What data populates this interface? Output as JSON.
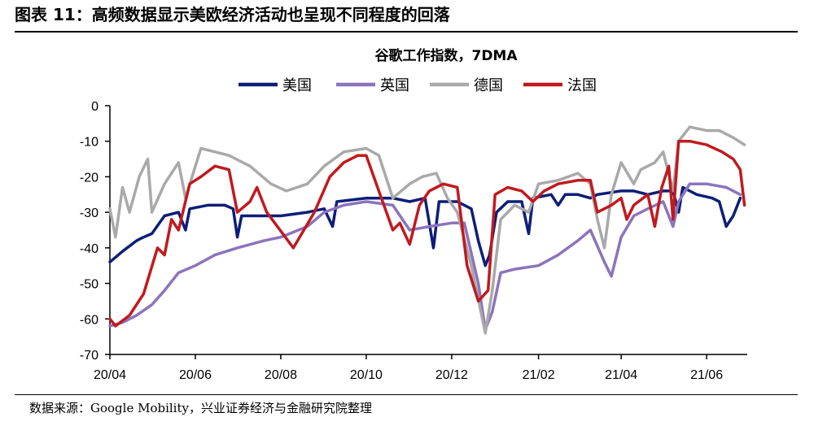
{
  "figure": {
    "title": "图表 11：高频数据显示美欧经济活动也呈现不同程度的回落",
    "source": "数据来源：Google Mobility，兴业证券经济与金融研究院整理"
  },
  "chart_data": {
    "type": "line",
    "title": "谷歌工作指数，7DMA",
    "xlabel": "",
    "ylabel": "",
    "xlim": [
      "2020-04-01",
      "2021-06-30"
    ],
    "ylim": [
      -70,
      0
    ],
    "y_ticks": [
      0,
      -10,
      -20,
      -30,
      -40,
      -50,
      -60,
      -70
    ],
    "x_ticks": [
      {
        "date": "2020-04-01",
        "label": "20/04"
      },
      {
        "date": "2020-06-01",
        "label": "20/06"
      },
      {
        "date": "2020-08-01",
        "label": "20/08"
      },
      {
        "date": "2020-10-01",
        "label": "20/10"
      },
      {
        "date": "2020-12-01",
        "label": "20/12"
      },
      {
        "date": "2021-02-01",
        "label": "21/02"
      },
      {
        "date": "2021-04-01",
        "label": "21/04"
      },
      {
        "date": "2021-06-01",
        "label": "21/06"
      }
    ],
    "grid": false,
    "legend_position": "top",
    "series": [
      {
        "name": "美国",
        "color": "#0d1e78",
        "points": [
          [
            "2020-04-01",
            -44
          ],
          [
            "2020-04-10",
            -41
          ],
          [
            "2020-04-20",
            -38
          ],
          [
            "2020-04-25",
            -37
          ],
          [
            "2020-05-01",
            -36
          ],
          [
            "2020-05-10",
            -31
          ],
          [
            "2020-05-20",
            -30
          ],
          [
            "2020-05-25",
            -35
          ],
          [
            "2020-05-28",
            -29
          ],
          [
            "2020-06-10",
            -28
          ],
          [
            "2020-06-22",
            -28
          ],
          [
            "2020-06-28",
            -29
          ],
          [
            "2020-07-01",
            -37
          ],
          [
            "2020-07-04",
            -31
          ],
          [
            "2020-07-20",
            -31
          ],
          [
            "2020-08-01",
            -31
          ],
          [
            "2020-08-20",
            -30
          ],
          [
            "2020-09-01",
            -29
          ],
          [
            "2020-09-07",
            -34
          ],
          [
            "2020-09-10",
            -27
          ],
          [
            "2020-10-01",
            -26
          ],
          [
            "2020-10-20",
            -26
          ],
          [
            "2020-11-01",
            -27
          ],
          [
            "2020-11-12",
            -26
          ],
          [
            "2020-11-18",
            -40
          ],
          [
            "2020-11-22",
            -27
          ],
          [
            "2020-12-05",
            -27
          ],
          [
            "2020-12-15",
            -29
          ],
          [
            "2020-12-20",
            -38
          ],
          [
            "2020-12-25",
            -45
          ],
          [
            "2020-12-28",
            -42
          ],
          [
            "2021-01-02",
            -30
          ],
          [
            "2021-01-10",
            -27
          ],
          [
            "2021-01-20",
            -27
          ],
          [
            "2021-01-25",
            -36
          ],
          [
            "2021-01-28",
            -26
          ],
          [
            "2021-02-10",
            -25
          ],
          [
            "2021-02-15",
            -28
          ],
          [
            "2021-02-20",
            -25
          ],
          [
            "2021-03-01",
            -25
          ],
          [
            "2021-03-10",
            -26
          ],
          [
            "2021-03-15",
            -25
          ],
          [
            "2021-04-01",
            -24
          ],
          [
            "2021-04-10",
            -24
          ],
          [
            "2021-04-20",
            -25
          ],
          [
            "2021-05-01",
            -24
          ],
          [
            "2021-05-08",
            -24
          ],
          [
            "2021-05-12",
            -30
          ],
          [
            "2021-05-15",
            -23
          ],
          [
            "2021-05-25",
            -25
          ],
          [
            "2021-06-05",
            -26
          ],
          [
            "2021-06-10",
            -27
          ],
          [
            "2021-06-15",
            -34
          ],
          [
            "2021-06-20",
            -31
          ],
          [
            "2021-06-25",
            -26
          ]
        ]
      },
      {
        "name": "英国",
        "color": "#8b74bd",
        "points": [
          [
            "2020-04-01",
            -62
          ],
          [
            "2020-04-10",
            -61
          ],
          [
            "2020-04-20",
            -59
          ],
          [
            "2020-05-01",
            -56
          ],
          [
            "2020-05-10",
            -52
          ],
          [
            "2020-05-20",
            -47
          ],
          [
            "2020-06-01",
            -45
          ],
          [
            "2020-06-15",
            -42
          ],
          [
            "2020-07-01",
            -40
          ],
          [
            "2020-07-20",
            -38
          ],
          [
            "2020-08-01",
            -37
          ],
          [
            "2020-08-20",
            -34
          ],
          [
            "2020-09-01",
            -30
          ],
          [
            "2020-09-15",
            -28
          ],
          [
            "2020-10-01",
            -27
          ],
          [
            "2020-10-20",
            -28
          ],
          [
            "2020-11-01",
            -35
          ],
          [
            "2020-11-15",
            -34
          ],
          [
            "2020-12-01",
            -33
          ],
          [
            "2020-12-10",
            -33
          ],
          [
            "2020-12-20",
            -50
          ],
          [
            "2020-12-25",
            -63
          ],
          [
            "2020-12-30",
            -58
          ],
          [
            "2021-01-05",
            -47
          ],
          [
            "2021-01-15",
            -46
          ],
          [
            "2021-02-01",
            -45
          ],
          [
            "2021-02-15",
            -42
          ],
          [
            "2021-03-01",
            -38
          ],
          [
            "2021-03-10",
            -35
          ],
          [
            "2021-03-20",
            -44
          ],
          [
            "2021-03-25",
            -48
          ],
          [
            "2021-04-01",
            -37
          ],
          [
            "2021-04-10",
            -31
          ],
          [
            "2021-04-20",
            -29
          ],
          [
            "2021-05-01",
            -27
          ],
          [
            "2021-05-08",
            -34
          ],
          [
            "2021-05-12",
            -27
          ],
          [
            "2021-05-20",
            -22
          ],
          [
            "2021-06-01",
            -22
          ],
          [
            "2021-06-15",
            -23
          ],
          [
            "2021-06-25",
            -25
          ]
        ]
      },
      {
        "name": "德国",
        "color": "#a9a9a9",
        "points": [
          [
            "2020-04-01",
            -29
          ],
          [
            "2020-04-05",
            -37
          ],
          [
            "2020-04-10",
            -23
          ],
          [
            "2020-04-15",
            -30
          ],
          [
            "2020-04-22",
            -20
          ],
          [
            "2020-04-28",
            -15
          ],
          [
            "2020-05-01",
            -30
          ],
          [
            "2020-05-10",
            -22
          ],
          [
            "2020-05-20",
            -16
          ],
          [
            "2020-05-25",
            -26
          ],
          [
            "2020-06-01",
            -17
          ],
          [
            "2020-06-05",
            -12
          ],
          [
            "2020-06-15",
            -13
          ],
          [
            "2020-06-25",
            -14
          ],
          [
            "2020-07-10",
            -17
          ],
          [
            "2020-07-25",
            -22
          ],
          [
            "2020-08-05",
            -24
          ],
          [
            "2020-08-20",
            -22
          ],
          [
            "2020-09-01",
            -17
          ],
          [
            "2020-09-15",
            -13
          ],
          [
            "2020-10-01",
            -12
          ],
          [
            "2020-10-10",
            -14
          ],
          [
            "2020-10-20",
            -26
          ],
          [
            "2020-11-01",
            -22
          ],
          [
            "2020-11-10",
            -20
          ],
          [
            "2020-11-20",
            -19
          ],
          [
            "2020-11-28",
            -26
          ],
          [
            "2020-12-05",
            -30
          ],
          [
            "2020-12-15",
            -45
          ],
          [
            "2020-12-25",
            -64
          ],
          [
            "2020-12-30",
            -52
          ],
          [
            "2021-01-05",
            -32
          ],
          [
            "2021-01-15",
            -28
          ],
          [
            "2021-01-25",
            -30
          ],
          [
            "2021-02-01",
            -22
          ],
          [
            "2021-02-15",
            -21
          ],
          [
            "2021-03-01",
            -19
          ],
          [
            "2021-03-10",
            -22
          ],
          [
            "2021-03-15",
            -32
          ],
          [
            "2021-03-20",
            -40
          ],
          [
            "2021-03-25",
            -25
          ],
          [
            "2021-04-01",
            -16
          ],
          [
            "2021-04-10",
            -22
          ],
          [
            "2021-04-15",
            -18
          ],
          [
            "2021-04-25",
            -16
          ],
          [
            "2021-05-01",
            -13
          ],
          [
            "2021-05-08",
            -24
          ],
          [
            "2021-05-12",
            -10
          ],
          [
            "2021-05-20",
            -6
          ],
          [
            "2021-06-01",
            -7
          ],
          [
            "2021-06-10",
            -7
          ],
          [
            "2021-06-20",
            -9
          ],
          [
            "2021-06-28",
            -11
          ]
        ]
      },
      {
        "name": "法国",
        "color": "#c01a1e",
        "points": [
          [
            "2020-04-01",
            -60
          ],
          [
            "2020-04-05",
            -62
          ],
          [
            "2020-04-15",
            -59
          ],
          [
            "2020-04-25",
            -53
          ],
          [
            "2020-05-05",
            -40
          ],
          [
            "2020-05-10",
            -42
          ],
          [
            "2020-05-15",
            -32
          ],
          [
            "2020-05-20",
            -35
          ],
          [
            "2020-05-28",
            -22
          ],
          [
            "2020-06-05",
            -20
          ],
          [
            "2020-06-15",
            -17
          ],
          [
            "2020-06-25",
            -18
          ],
          [
            "2020-07-01",
            -30
          ],
          [
            "2020-07-10",
            -27
          ],
          [
            "2020-07-15",
            -23
          ],
          [
            "2020-07-22",
            -30
          ],
          [
            "2020-08-10",
            -40
          ],
          [
            "2020-08-25",
            -30
          ],
          [
            "2020-09-05",
            -20
          ],
          [
            "2020-09-15",
            -16
          ],
          [
            "2020-09-25",
            -14
          ],
          [
            "2020-10-01",
            -14
          ],
          [
            "2020-10-10",
            -24
          ],
          [
            "2020-10-20",
            -35
          ],
          [
            "2020-10-25",
            -33
          ],
          [
            "2020-11-01",
            -39
          ],
          [
            "2020-11-08",
            -28
          ],
          [
            "2020-11-15",
            -24
          ],
          [
            "2020-11-25",
            -22
          ],
          [
            "2020-12-05",
            -23
          ],
          [
            "2020-12-12",
            -45
          ],
          [
            "2020-12-20",
            -55
          ],
          [
            "2020-12-27",
            -52
          ],
          [
            "2021-01-01",
            -25
          ],
          [
            "2021-01-10",
            -23
          ],
          [
            "2021-01-20",
            -24
          ],
          [
            "2021-01-28",
            -27
          ],
          [
            "2021-02-05",
            -24
          ],
          [
            "2021-02-15",
            -22
          ],
          [
            "2021-03-01",
            -21
          ],
          [
            "2021-03-10",
            -21
          ],
          [
            "2021-03-15",
            -30
          ],
          [
            "2021-03-25",
            -28
          ],
          [
            "2021-04-01",
            -26
          ],
          [
            "2021-04-05",
            -32
          ],
          [
            "2021-04-10",
            -28
          ],
          [
            "2021-04-20",
            -25
          ],
          [
            "2021-04-25",
            -34
          ],
          [
            "2021-04-30",
            -23
          ],
          [
            "2021-05-05",
            -17
          ],
          [
            "2021-05-08",
            -32
          ],
          [
            "2021-05-12",
            -10
          ],
          [
            "2021-05-20",
            -10
          ],
          [
            "2021-06-01",
            -11
          ],
          [
            "2021-06-12",
            -13
          ],
          [
            "2021-06-20",
            -15
          ],
          [
            "2021-06-25",
            -18
          ],
          [
            "2021-06-28",
            -28
          ]
        ]
      }
    ]
  }
}
